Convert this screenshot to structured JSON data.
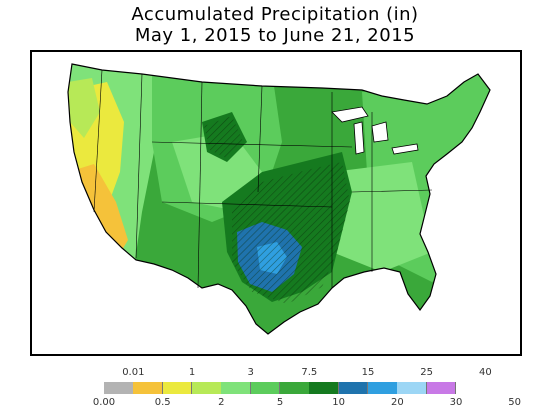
{
  "title_line1": "Accumulated Precipitation (in)",
  "title_line2": "May 1, 2015 to June 21, 2015",
  "legend": {
    "colors": [
      "#b3b3b3",
      "#f5c23a",
      "#ebe93e",
      "#b7e957",
      "#7fe27a",
      "#5ccc5c",
      "#3aa83a",
      "#157a1f",
      "#1f73ad",
      "#2f9fe0",
      "#9cd6f5",
      "#c879e6"
    ],
    "labels_top": [
      "0.01",
      "1",
      "3",
      "7.5",
      "15",
      "25",
      "40"
    ],
    "labels_bottom": [
      "0.00",
      "0.5",
      "2",
      "5",
      "10",
      "20",
      "30",
      "50"
    ]
  }
}
